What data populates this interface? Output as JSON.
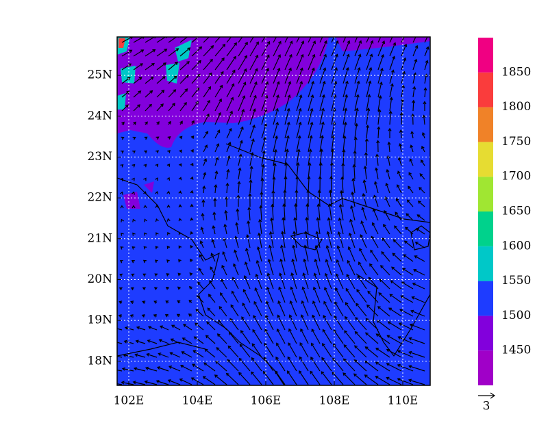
{
  "map": {
    "lon_range": [
      101.66,
      110.8
    ],
    "lat_range": [
      17.41,
      25.94
    ],
    "lon_ticks": [
      {
        "value": 102,
        "label": "102E"
      },
      {
        "value": 104,
        "label": "104E"
      },
      {
        "value": 106,
        "label": "106E"
      },
      {
        "value": 108,
        "label": "108E"
      },
      {
        "value": 110,
        "label": "110E"
      }
    ],
    "lat_ticks": [
      {
        "value": 18,
        "label": "18N"
      },
      {
        "value": 19,
        "label": "19N"
      },
      {
        "value": 20,
        "label": "20N"
      },
      {
        "value": 21,
        "label": "21N"
      },
      {
        "value": 22,
        "label": "22N"
      },
      {
        "value": 23,
        "label": "23N"
      },
      {
        "value": 24,
        "label": "24N"
      },
      {
        "value": 25,
        "label": "25N"
      }
    ],
    "grid": true
  },
  "colorbar": {
    "colors": [
      "#a000c8",
      "#8200dc",
      "#1e3cff",
      "#00c8c8",
      "#00d28c",
      "#a0e632",
      "#e6dc32",
      "#f08228",
      "#fa3c3c",
      "#f00082"
    ],
    "levels": [
      1450,
      1500,
      1550,
      1600,
      1650,
      1700,
      1750,
      1800,
      1850
    ]
  },
  "vector_scale": 3
}
